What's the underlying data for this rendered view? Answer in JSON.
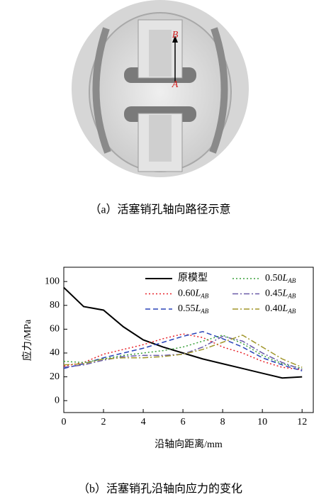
{
  "figure_a": {
    "caption": "（a）活塞销孔轴向路径示意",
    "label_top": "B",
    "label_bottom": "A"
  },
  "chart_data": {
    "type": "line",
    "caption": "（b）活塞销孔沿轴向应力的变化",
    "x_label": "沿轴向距离/mm",
    "y_label": "应力/MPa",
    "x": [
      0,
      1,
      2,
      3,
      4,
      5,
      6,
      7,
      8,
      9,
      10,
      11,
      12
    ],
    "series": [
      {
        "name": "原模型",
        "color": "#000000",
        "style": "solid",
        "values": [
          95,
          79,
          76,
          62,
          51,
          45,
          40,
          35,
          31,
          27,
          23,
          19,
          20
        ]
      },
      {
        "name": "0.60LAB",
        "color": "#e8232a",
        "style": "dotted",
        "values": [
          29,
          32,
          39,
          43,
          47,
          52,
          56,
          53,
          45,
          40,
          33,
          28,
          26
        ]
      },
      {
        "name": "0.55LAB",
        "color": "#2a44b8",
        "style": "dashed",
        "values": [
          27,
          31,
          36,
          40,
          44,
          49,
          54,
          58,
          52,
          45,
          36,
          30,
          25
        ]
      },
      {
        "name": "0.50LAB",
        "color": "#3aa03a",
        "style": "dotted",
        "values": [
          33,
          32,
          35,
          38,
          40,
          42,
          45,
          50,
          55,
          48,
          38,
          31,
          27
        ]
      },
      {
        "name": "0.45LAB",
        "color": "#6a5aa8",
        "style": "dashdot",
        "values": [
          28,
          30,
          34,
          37,
          38,
          38,
          39,
          45,
          54,
          50,
          40,
          32,
          26
        ]
      },
      {
        "name": "0.40LAB",
        "color": "#a0962a",
        "style": "dashdot",
        "values": [
          30,
          31,
          35,
          36,
          36,
          37,
          39,
          43,
          49,
          55,
          45,
          35,
          28
        ]
      }
    ],
    "xlim": [
      0,
      12.6
    ],
    "ylim": [
      -10,
      112
    ],
    "xticks": [
      0,
      2,
      4,
      6,
      8,
      10,
      12
    ],
    "yticks": [
      0,
      20,
      40,
      60,
      80,
      100
    ]
  }
}
